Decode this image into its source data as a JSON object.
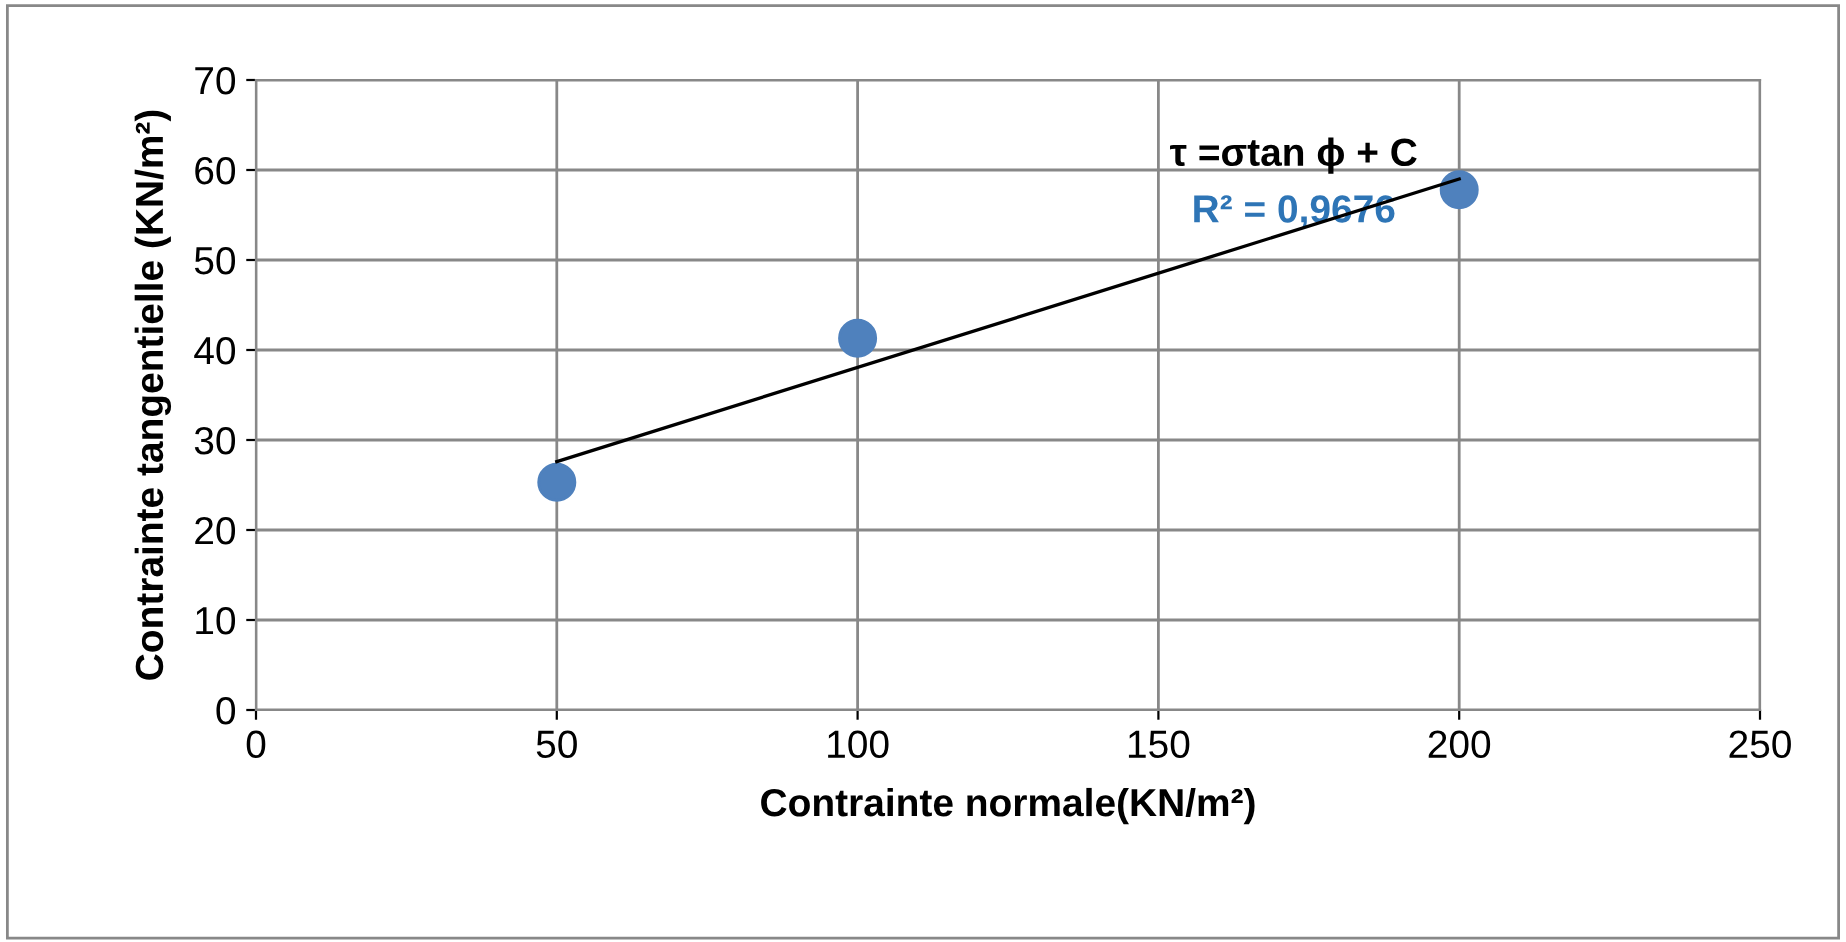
{
  "chart_data": {
    "type": "scatter",
    "xlabel": "Contrainte normale(KN/m²)",
    "ylabel": "Contrainte tangentielle (KN/m²)",
    "series": [
      {
        "color": "#4f81bd",
        "x": [
          50,
          100,
          200
        ],
        "values": [
          25.3,
          41.3,
          57.8
        ],
        "marker": "circle"
      },
      {
        "type": "line",
        "color": "#000000",
        "x": [
          50,
          200
        ],
        "values": [
          27.6,
          59.0
        ],
        "marker": "none"
      }
    ],
    "annotations": [
      "τ =σtan ϕ + C",
      "R² = 0,9676"
    ],
    "xlim": [
      0,
      250
    ],
    "xticks": [
      0,
      50,
      100,
      150,
      200,
      250
    ],
    "ylim": [
      0,
      70
    ],
    "yticks": [
      0,
      10,
      20,
      30,
      40,
      50,
      60,
      70
    ],
    "grid": true,
    "legend": false
  }
}
